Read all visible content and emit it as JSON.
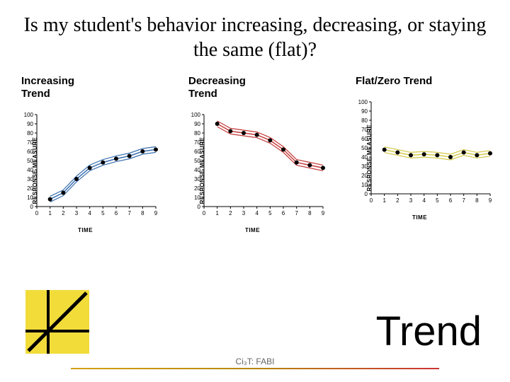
{
  "title": "Is my student's behavior increasing, decreasing, or staying the same (flat)?",
  "y_axis_label": "RESPONSE MEASURE",
  "x_axis_label": "TIME",
  "big_label": "Trend",
  "footer_text": "Ci₃T: FABI",
  "axis": {
    "ymin": 0,
    "ymax": 100,
    "ytick_step": 10,
    "xmin": 0,
    "xmax": 9,
    "xtick_step": 1,
    "tick_color": "#000000",
    "label_fontsize": 8
  },
  "charts": [
    {
      "label": "Increasing\nTrend",
      "series_color": "#3a6fb0",
      "band_color": "#9fbde0",
      "marker": "circle",
      "marker_fill": "#000000",
      "marker_size": 3,
      "band_width": 8,
      "x": [
        1,
        2,
        3,
        4,
        5,
        6,
        7,
        8,
        9
      ],
      "y": [
        8,
        15,
        30,
        42,
        48,
        52,
        55,
        60,
        62
      ]
    },
    {
      "label": "Decreasing\nTrend",
      "series_color": "#c43a3a",
      "band_color": "#e8a0a0",
      "marker": "circle",
      "marker_fill": "#000000",
      "marker_size": 3,
      "band_width": 8,
      "x": [
        1,
        2,
        3,
        4,
        5,
        6,
        7,
        8,
        9
      ],
      "y": [
        90,
        82,
        80,
        78,
        72,
        62,
        48,
        45,
        42
      ]
    },
    {
      "label": "Flat/Zero Trend",
      "series_color": "#d4c94a",
      "band_color": "#f0e890",
      "marker": "circle",
      "marker_fill": "#000000",
      "marker_size": 3,
      "band_width": 8,
      "x": [
        1,
        2,
        3,
        4,
        5,
        6,
        7,
        8,
        9
      ],
      "y": [
        48,
        45,
        42,
        43,
        42,
        40,
        45,
        42,
        44
      ]
    }
  ],
  "icon": {
    "bg_color": "#f2dc3a",
    "line_color": "#000000",
    "line_width": 4
  }
}
